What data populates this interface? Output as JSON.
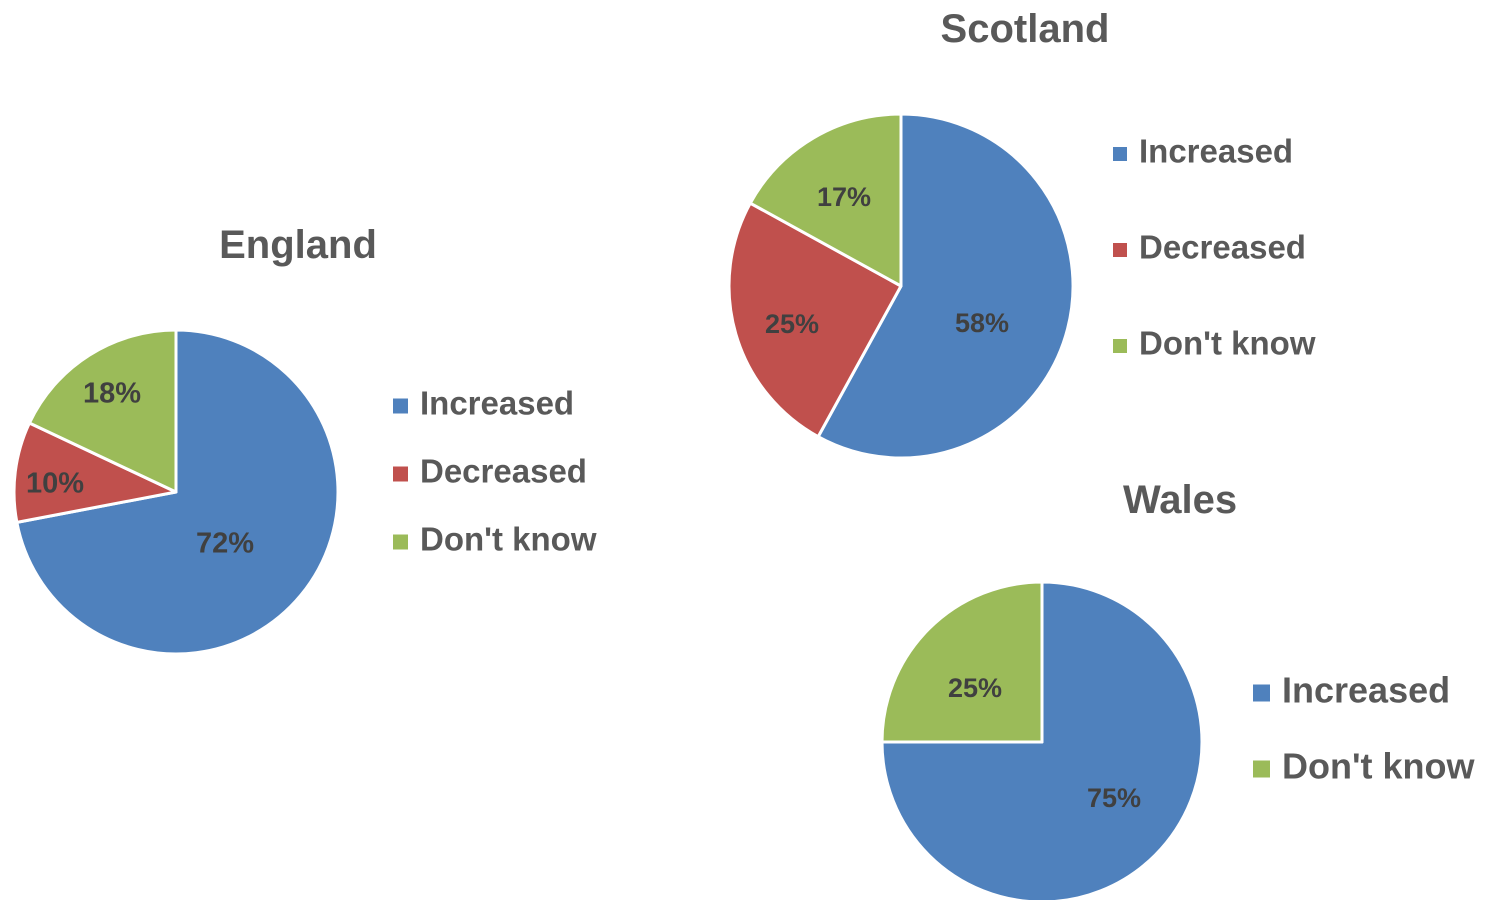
{
  "colors": {
    "Increased": "#4f81bd",
    "Decreased": "#c0504d",
    "Don't know": "#9bbb59"
  },
  "chart_data": [
    {
      "type": "pie",
      "title": "England",
      "categories": [
        "Increased",
        "Decreased",
        "Don't know"
      ],
      "values": [
        72,
        10,
        18
      ],
      "labels": [
        "72%",
        "10%",
        "18%"
      ],
      "legend": [
        "Increased",
        "Decreased",
        "Don't know"
      ],
      "legend_position": "right"
    },
    {
      "type": "pie",
      "title": "Scotland",
      "categories": [
        "Increased",
        "Decreased",
        "Don't know"
      ],
      "values": [
        58,
        25,
        17
      ],
      "labels": [
        "58%",
        "25%",
        "17%"
      ],
      "legend": [
        "Increased",
        "Decreased",
        "Don't know"
      ],
      "legend_position": "right"
    },
    {
      "type": "pie",
      "title": "Wales",
      "categories": [
        "Increased",
        "Don't know"
      ],
      "values": [
        75,
        25
      ],
      "labels": [
        "75%",
        "25%"
      ],
      "legend": [
        "Increased",
        "Don't know"
      ],
      "legend_position": "right"
    }
  ]
}
